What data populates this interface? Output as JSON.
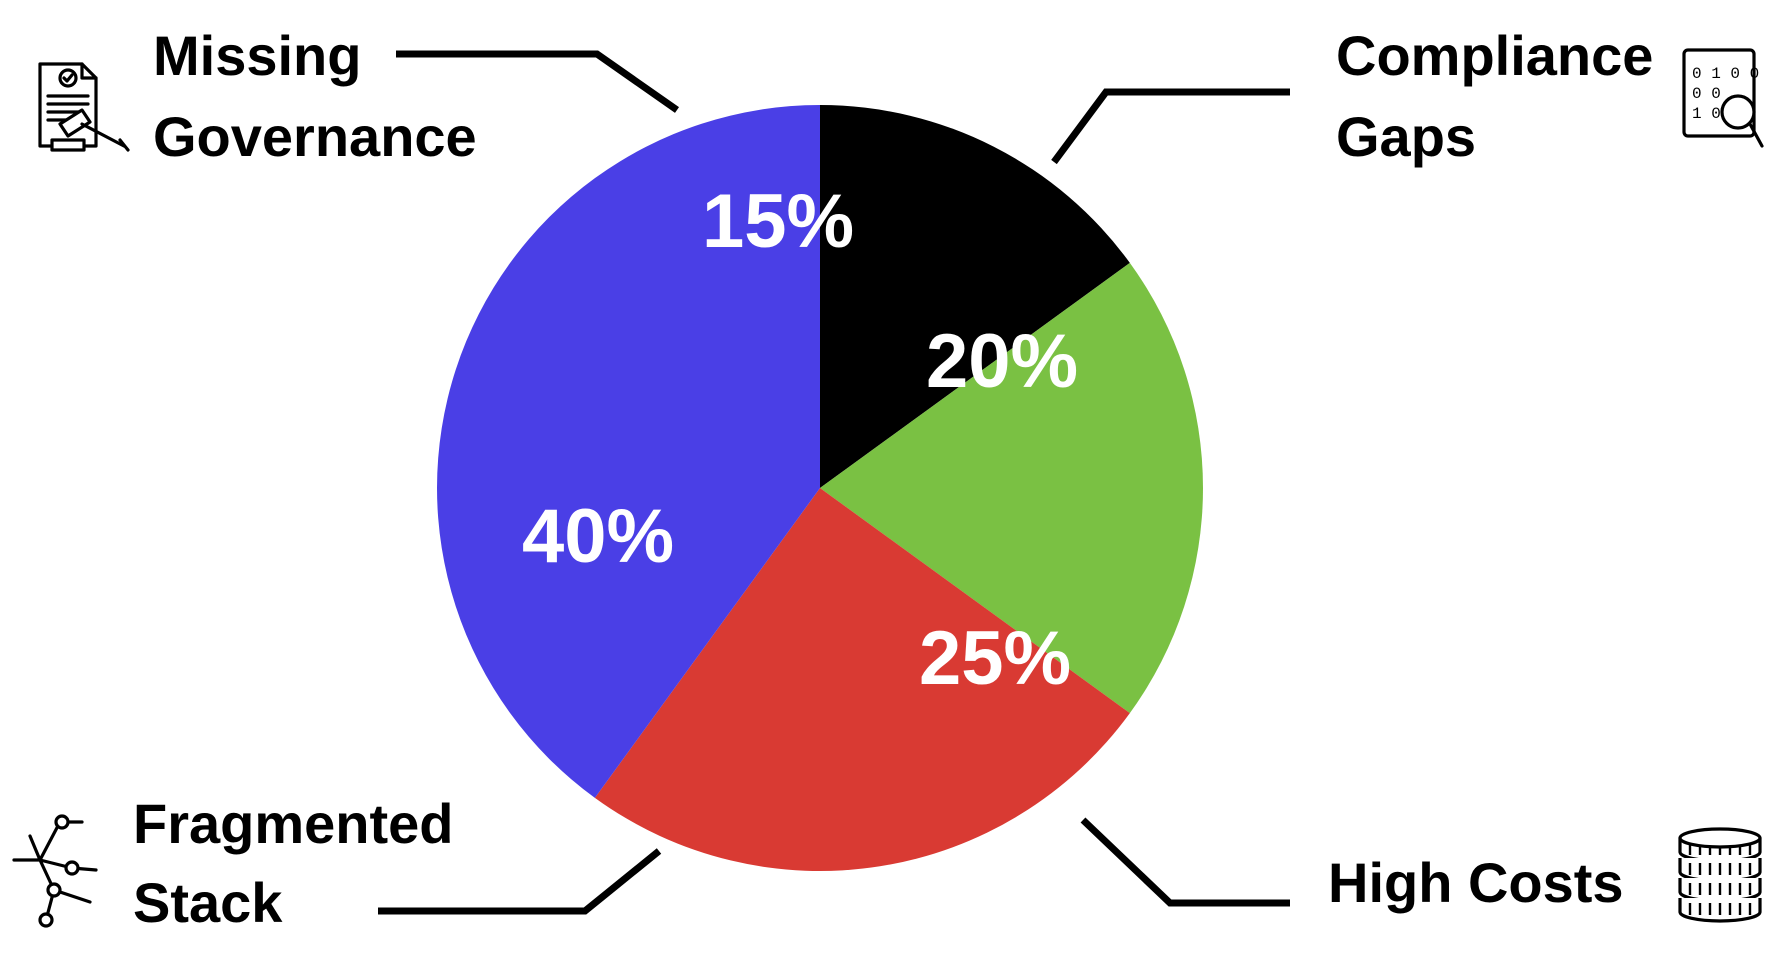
{
  "chart_data": {
    "type": "pie",
    "slices": [
      {
        "label": "Missing Governance",
        "value": 15,
        "display": "15%",
        "color": "#000000",
        "icon": "governance-document-gavel-icon"
      },
      {
        "label": "Compliance Gaps",
        "value": 20,
        "display": "20%",
        "color": "#7ac143",
        "icon": "binary-magnifier-icon"
      },
      {
        "label": "High Costs",
        "value": 25,
        "display": "25%",
        "color": "#d93a33",
        "icon": "coin-stack-icon"
      },
      {
        "label": "Fragmented Stack",
        "value": 40,
        "display": "40%",
        "color": "#4a3fe6",
        "icon": "network-nodes-icon"
      }
    ],
    "labels": {
      "governance": [
        "Missing",
        "Governance"
      ],
      "compliance": [
        "Compliance",
        "Gaps"
      ],
      "costs": [
        "High Costs"
      ],
      "stack": [
        "Fragmented",
        "Stack"
      ]
    },
    "title": "",
    "legend": "none",
    "start": "12 o'clock, clockwise"
  }
}
